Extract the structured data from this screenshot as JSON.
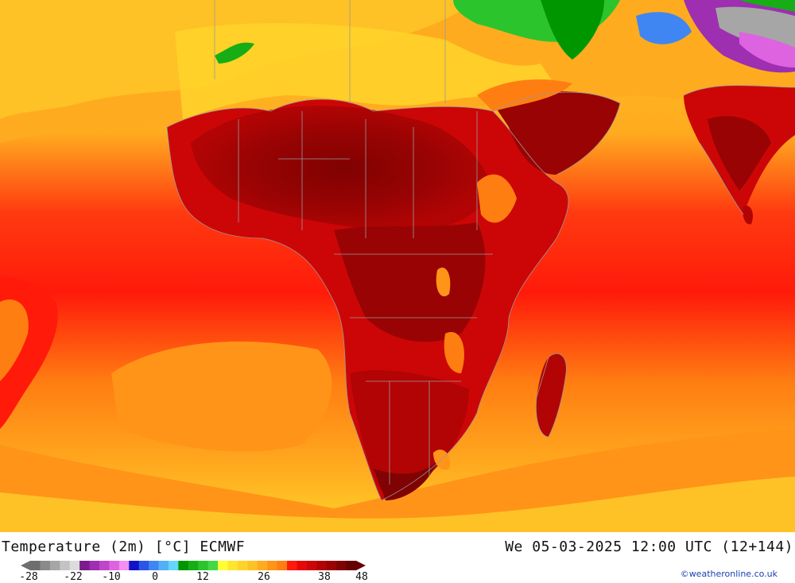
{
  "title": "Temperature (2m) [°C] ECMWF",
  "datetime": "We 05-03-2025 12:00 UTC (12+144)",
  "credit": "©weatheronline.co.uk",
  "legend": {
    "ticks": [
      "-28",
      "-22",
      "-10",
      "0",
      "12",
      "26",
      "38",
      "48"
    ],
    "colors": [
      "#6e6e6e",
      "#8a8a8a",
      "#a6a6a6",
      "#c3c3c3",
      "#dcdcdc",
      "#7a1c8c",
      "#9d2fb0",
      "#bf46c9",
      "#dd63e0",
      "#f28ff2",
      "#1212c8",
      "#2b55e6",
      "#3f86f2",
      "#52b0f7",
      "#66d6fb",
      "#009600",
      "#16ad16",
      "#2cc42c",
      "#45d845",
      "#ffff33",
      "#ffe62e",
      "#ffd42a",
      "#ffc226",
      "#ffab1f",
      "#ff9419",
      "#ff7e12",
      "#ff1a0a",
      "#e60808",
      "#cc0606",
      "#b20404",
      "#990303",
      "#800202",
      "#660101"
    ]
  },
  "colors": {
    "ocean_yellow": "#ffd42a",
    "ocean_orange": "#ffab1f",
    "hot_red": "#ff1a0a",
    "very_hot": "#cc0606",
    "extreme": "#800202",
    "green": "#16ad16",
    "blue": "#3f86f2",
    "purple": "#9d2fb0"
  }
}
